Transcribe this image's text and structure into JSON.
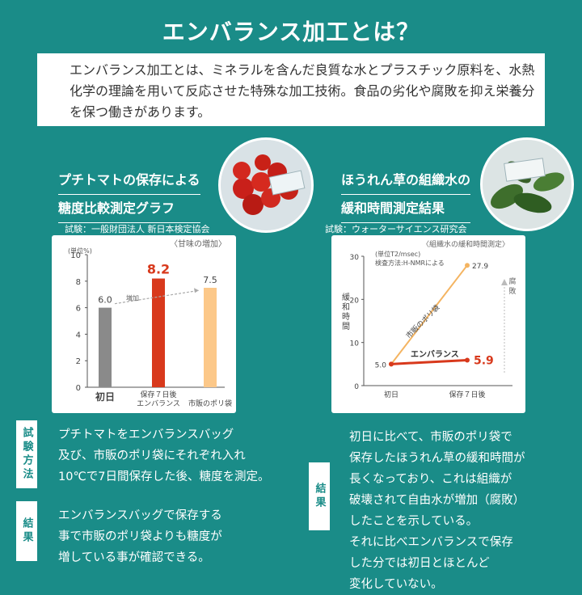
{
  "title": "エンバランス加工とは？",
  "intro": "エンバランス加工とは、ミネラルを含んだ良質な水とプラスチック原料を、水熱化学の理論を用いて反応させた特殊な加工技術。食品の劣化や腐敗を抑え栄養分を保つ働きがあります。",
  "left": {
    "heading_line1": "プチトマトの保存による",
    "heading_line2": "糖度比較測定グラフ",
    "test_org": "試験：一般財団法人 新日本検定協会",
    "method_label": "試験方法",
    "method_text": "プチトマトをエンバランスバッグ\n及び、市販のポリ袋にそれぞれ入れ\n10℃で7日間保存した後、糖度を測定。",
    "result_label": "結果",
    "result_text": "エンバランスバッグで保存する\n事で市販のポリ袋よりも糖度が\n増している事が確認できる。"
  },
  "right": {
    "heading_line1": "ほうれん草の組織水の",
    "heading_line2": "緩和時間測定結果",
    "test_org": "試験：ウォーターサイエンス研究会",
    "result_label": "結果",
    "result_text": "初日に比べて、市販のポリ袋で\n保存したほうれん草の緩和時間が\n長くなっており、これは組織が\n破壊されて自由水が増加（腐敗）\nしたことを示している。\nそれに比べエンバランスで保存\nした分では初日とほとんど\n変化していない。"
  },
  "chart_data": [
    {
      "type": "bar",
      "title": "〈甘味の増加〉",
      "unit": "(単位%)",
      "ylim": [
        0,
        10
      ],
      "yticks": [
        "0",
        "2",
        "4",
        "6",
        "8",
        "10"
      ],
      "categories": [
        "初日",
        "保存７日後 エンバランス",
        "保存７日後 市販のポリ袋"
      ],
      "category_top": [
        "",
        "保存７日後",
        ""
      ],
      "category_labels": [
        "初日",
        "エンバランス",
        "市販のポリ袋"
      ],
      "values": [
        6.0,
        8.2,
        7.5
      ],
      "value_labels": [
        "6.0",
        "8.2",
        "7.5"
      ],
      "colors": [
        "#8a8a8a",
        "#d8391c",
        "#fcc889"
      ],
      "annotation": "増加"
    },
    {
      "type": "line",
      "title": "〈組織水の緩和時間測定〉",
      "unit": "(単位T2/msec)",
      "method": "検査方法:H-NMRによる",
      "ylabel": "緩和時間",
      "ylim": [
        0,
        30
      ],
      "yticks": [
        "0",
        "10",
        "20",
        "30"
      ],
      "x": [
        "初日",
        "保存７日後"
      ],
      "series": [
        {
          "name": "市販のポリ袋",
          "values": [
            5.0,
            27.9
          ],
          "labels": [
            "5.0",
            "27.9"
          ],
          "color": "#f4b461"
        },
        {
          "name": "エンバランス",
          "values": [
            5.0,
            5.9
          ],
          "labels": [
            "",
            "5.9"
          ],
          "color": "#d8391c"
        }
      ],
      "annotation": "腐敗"
    }
  ]
}
